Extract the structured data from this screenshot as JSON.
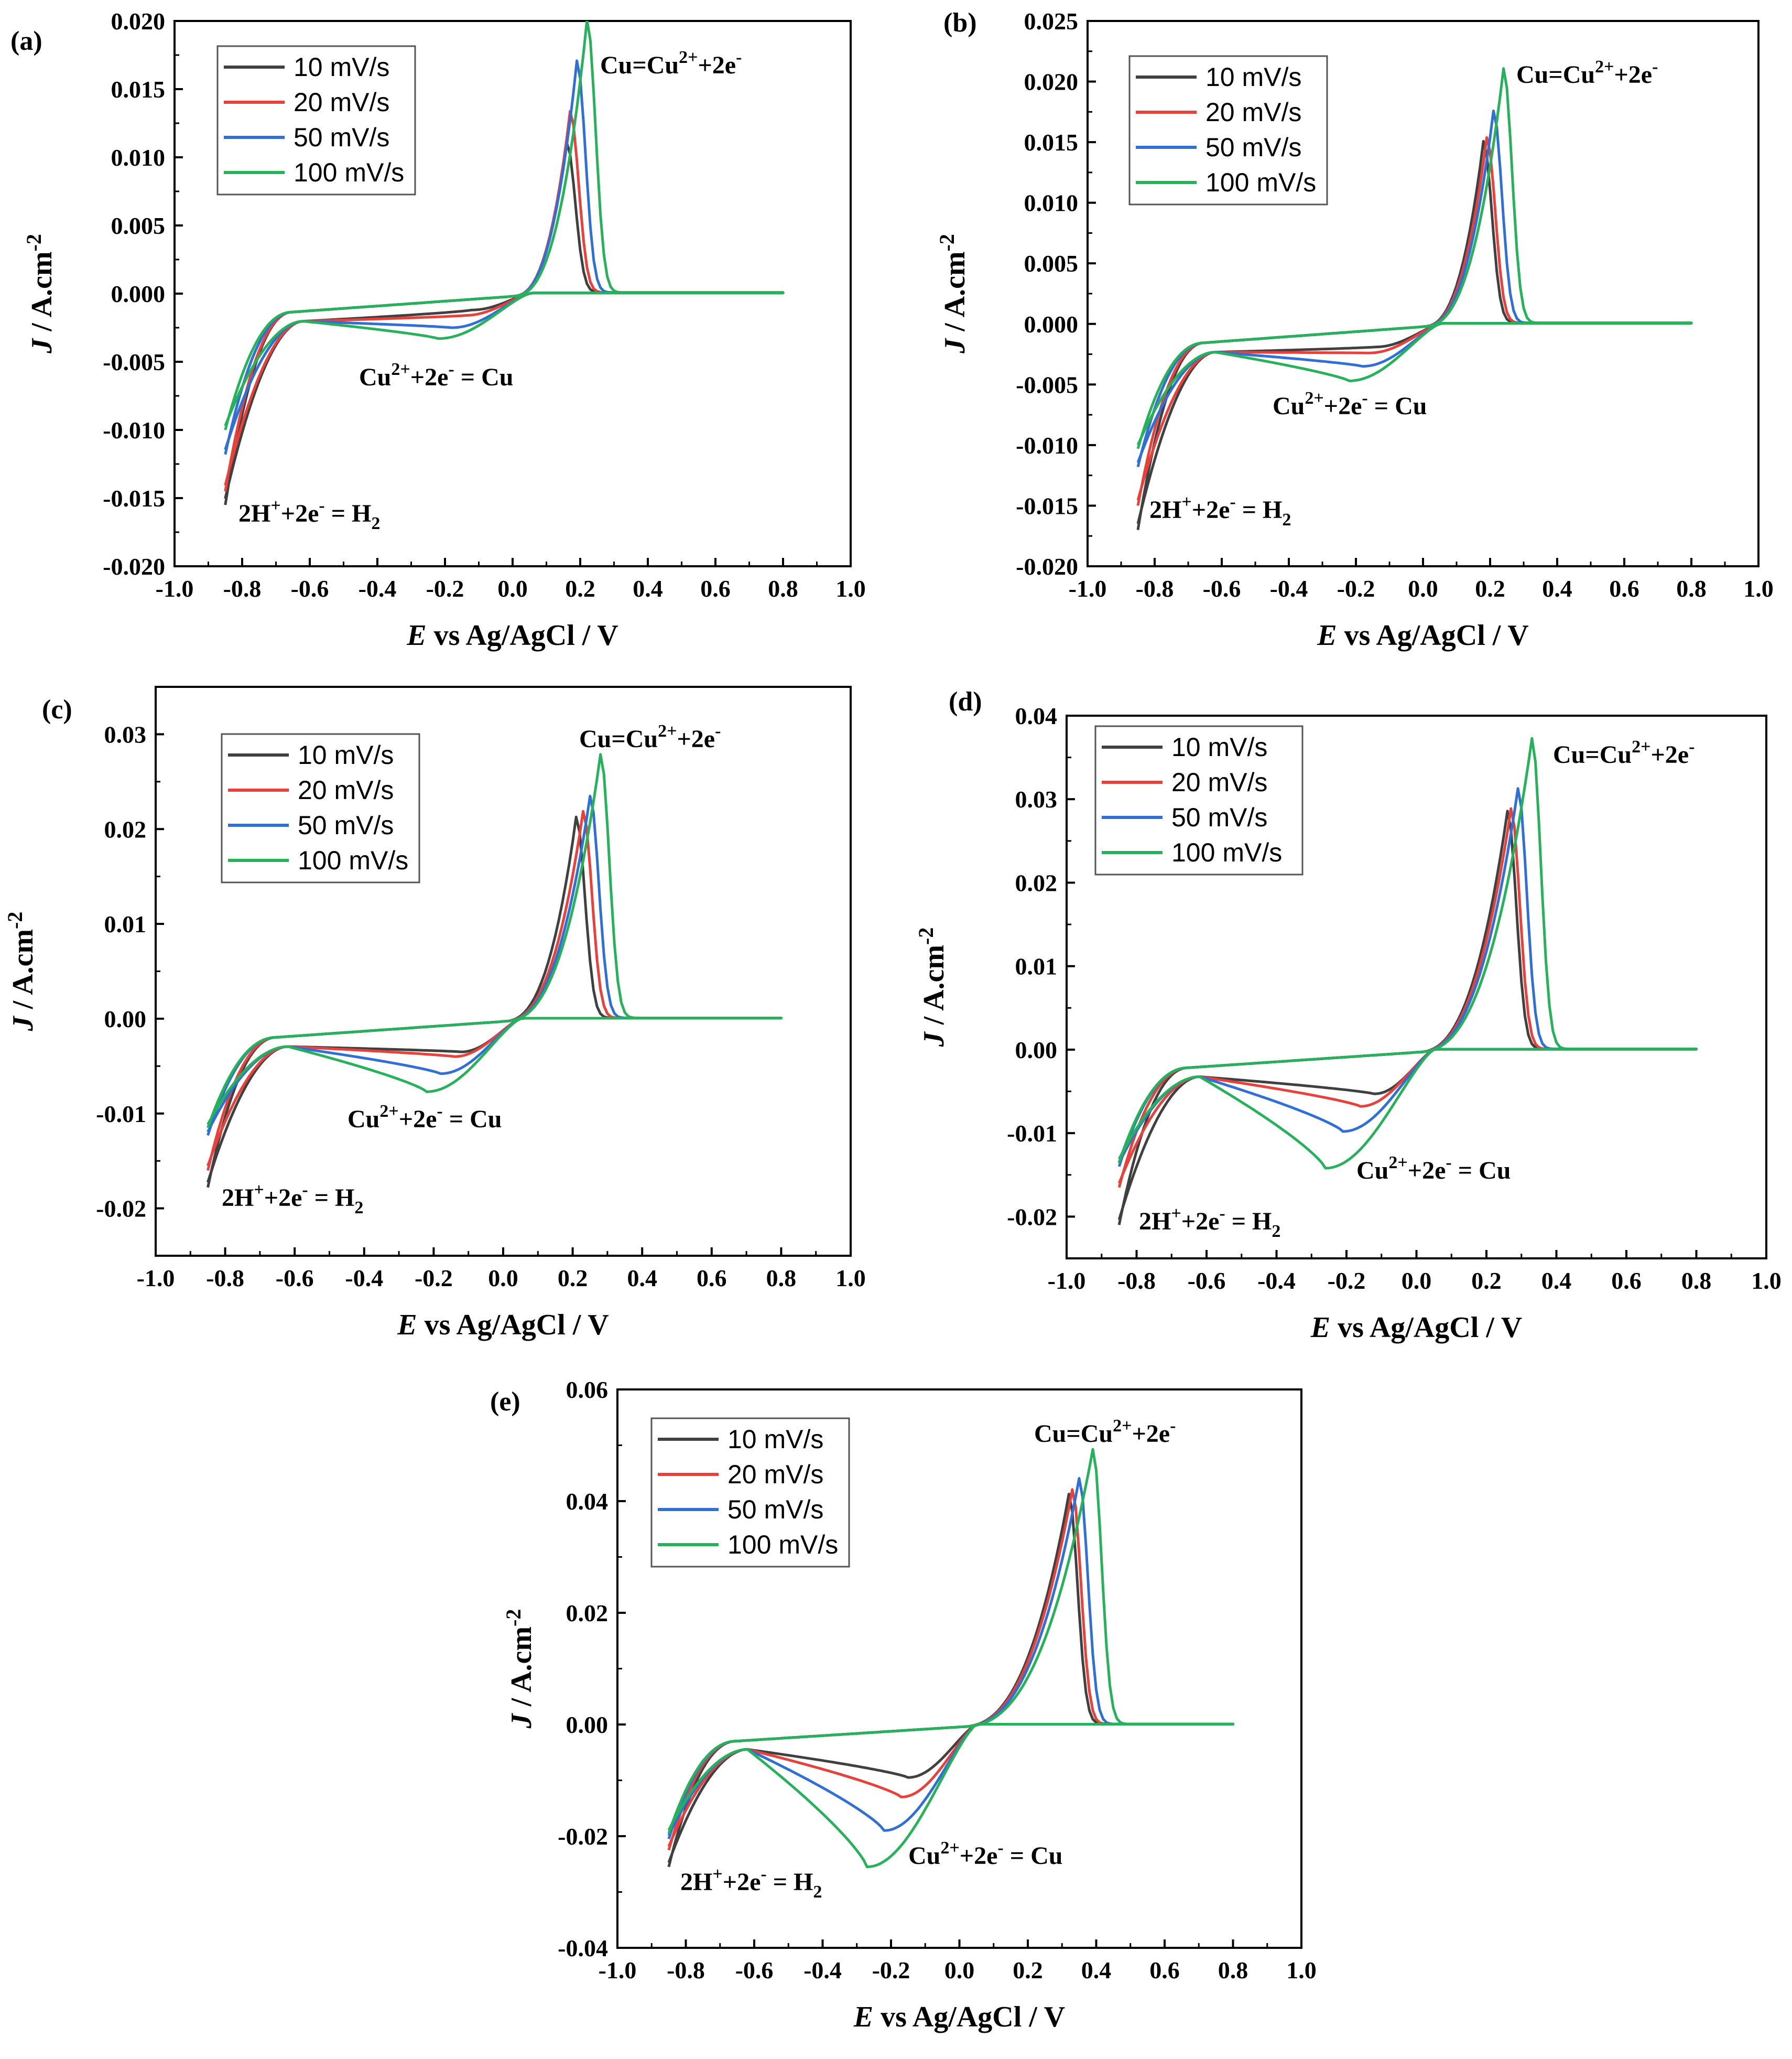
{
  "figure": {
    "xlabel_italic": "E",
    "xlabel_rest": " vs Ag/AgCl / V",
    "ylabel_italic": "J",
    "ylabel_rest": " / A.cm",
    "ylabel_sup": "-2",
    "legend": [
      "10 mV/s",
      "20 mV/s",
      "50 mV/s",
      "100 mV/s"
    ],
    "colors": [
      "#404040",
      "#e8403a",
      "#2f6fd6",
      "#27b15a"
    ],
    "annotations": {
      "oxidation": {
        "a": "Cu=Cu",
        "b": "2+",
        "c": "+2e",
        "d": "-"
      },
      "reduction": {
        "a": "Cu",
        "b": "2+",
        "c": "+2e",
        "d": "-",
        "e": " = Cu"
      },
      "hydrogen": {
        "a": "2H",
        "b": "+",
        "c": "+2e",
        "d": "-",
        "e": " = H",
        "f": "2"
      }
    }
  },
  "chart_data": [
    {
      "panel": "(a)",
      "type": "line",
      "xlim": [
        -1.0,
        1.0
      ],
      "ylim": [
        -0.02,
        0.02
      ],
      "xticks": [
        "-1.0",
        "-0.8",
        "-0.6",
        "-0.4",
        "-0.2",
        "0.0",
        "0.2",
        "0.4",
        "0.6",
        "0.8",
        "1.0"
      ],
      "yticks": [
        "-0.020",
        "-0.015",
        "-0.010",
        "-0.005",
        "0.000",
        "0.005",
        "0.010",
        "0.015",
        "0.020"
      ],
      "xtick_values": [
        -1.0,
        -0.8,
        -0.6,
        -0.4,
        -0.2,
        0.0,
        0.2,
        0.4,
        0.6,
        0.8,
        1.0
      ],
      "ytick_values": [
        -0.02,
        -0.015,
        -0.01,
        -0.005,
        0.0,
        0.005,
        0.01,
        0.015,
        0.02
      ],
      "series": [
        {
          "name": "10 mV/s",
          "peak_anodic": {
            "x": 0.16,
            "y": 0.011
          },
          "peak_cathodic": {
            "x": -0.12,
            "y": -0.0012
          },
          "min_current": -0.0155
        },
        {
          "name": "20 mV/s",
          "peak_anodic": {
            "x": 0.17,
            "y": 0.0133
          },
          "peak_cathodic": {
            "x": -0.14,
            "y": -0.0016
          },
          "min_current": -0.0145
        },
        {
          "name": "50 mV/s",
          "peak_anodic": {
            "x": 0.19,
            "y": 0.017
          },
          "peak_cathodic": {
            "x": -0.18,
            "y": -0.0025
          },
          "min_current": -0.0118
        },
        {
          "name": "100 mV/s",
          "peak_anodic": {
            "x": 0.22,
            "y": 0.02
          },
          "peak_cathodic": {
            "x": -0.22,
            "y": -0.0033
          },
          "min_current": -0.01
        }
      ]
    },
    {
      "panel": "(b)",
      "type": "line",
      "xlim": [
        -1.0,
        1.0
      ],
      "ylim": [
        -0.02,
        0.025
      ],
      "xticks": [
        "-1.0",
        "-0.8",
        "-0.6",
        "-0.4",
        "-0.2",
        "0.0",
        "0.2",
        "0.4",
        "0.6",
        "0.8",
        "1.0"
      ],
      "yticks": [
        "-0.020",
        "-0.015",
        "-0.010",
        "-0.005",
        "0.000",
        "0.005",
        "0.010",
        "0.015",
        "0.020",
        "0.025"
      ],
      "xtick_values": [
        -1.0,
        -0.8,
        -0.6,
        -0.4,
        -0.2,
        0.0,
        0.2,
        0.4,
        0.6,
        0.8,
        1.0
      ],
      "ytick_values": [
        -0.02,
        -0.015,
        -0.01,
        -0.005,
        0.0,
        0.005,
        0.01,
        0.015,
        0.02,
        0.025
      ],
      "series": [
        {
          "name": "10 mV/s",
          "peak_anodic": {
            "x": 0.18,
            "y": 0.015
          },
          "peak_cathodic": {
            "x": -0.14,
            "y": -0.0019
          },
          "min_current": -0.017
        },
        {
          "name": "20 mV/s",
          "peak_anodic": {
            "x": 0.19,
            "y": 0.0153
          },
          "peak_cathodic": {
            "x": -0.16,
            "y": -0.0024
          },
          "min_current": -0.015
        },
        {
          "name": "50 mV/s",
          "peak_anodic": {
            "x": 0.21,
            "y": 0.0175
          },
          "peak_cathodic": {
            "x": -0.18,
            "y": -0.0035
          },
          "min_current": -0.0118
        },
        {
          "name": "100 mV/s",
          "peak_anodic": {
            "x": 0.24,
            "y": 0.021
          },
          "peak_cathodic": {
            "x": -0.22,
            "y": -0.0047
          },
          "min_current": -0.0103
        }
      ]
    },
    {
      "panel": "(c)",
      "type": "line",
      "xlim": [
        -1.0,
        1.0
      ],
      "ylim": [
        -0.025,
        0.035
      ],
      "xticks": [
        "-1.0",
        "-0.8",
        "-0.6",
        "-0.4",
        "-0.2",
        "0.0",
        "0.2",
        "0.4",
        "0.6",
        "0.8",
        "1.0"
      ],
      "yticks": [
        "-0.02",
        "-0.01",
        "0.00",
        "0.01",
        "0.02",
        "0.03"
      ],
      "xtick_values": [
        -1.0,
        -0.8,
        -0.6,
        -0.4,
        -0.2,
        0.0,
        0.2,
        0.4,
        0.6,
        0.8,
        1.0
      ],
      "ytick_values": [
        -0.02,
        -0.01,
        0.0,
        0.01,
        0.02,
        0.03
      ],
      "series": [
        {
          "name": "10 mV/s",
          "peak_anodic": {
            "x": 0.21,
            "y": 0.0212
          },
          "peak_cathodic": {
            "x": -0.12,
            "y": -0.0035
          },
          "min_current": -0.0178
        },
        {
          "name": "20 mV/s",
          "peak_anodic": {
            "x": 0.23,
            "y": 0.0218
          },
          "peak_cathodic": {
            "x": -0.14,
            "y": -0.004
          },
          "min_current": -0.016
        },
        {
          "name": "50 mV/s",
          "peak_anodic": {
            "x": 0.25,
            "y": 0.0234
          },
          "peak_cathodic": {
            "x": -0.18,
            "y": -0.0058
          },
          "min_current": -0.0123
        },
        {
          "name": "100 mV/s",
          "peak_anodic": {
            "x": 0.28,
            "y": 0.0278
          },
          "peak_cathodic": {
            "x": -0.22,
            "y": -0.0077
          },
          "min_current": -0.0115
        }
      ]
    },
    {
      "panel": "(d)",
      "type": "line",
      "xlim": [
        -1.0,
        1.0
      ],
      "ylim": [
        -0.025,
        0.04
      ],
      "xticks": [
        "-1.0",
        "-0.8",
        "-0.6",
        "-0.4",
        "-0.2",
        "0.0",
        "0.2",
        "0.4",
        "0.6",
        "0.8",
        "1.0"
      ],
      "yticks": [
        "-0.02",
        "-0.01",
        "0.00",
        "0.01",
        "0.02",
        "0.03",
        "0.04"
      ],
      "xtick_values": [
        -1.0,
        -0.8,
        -0.6,
        -0.4,
        -0.2,
        0.0,
        0.2,
        0.4,
        0.6,
        0.8,
        1.0
      ],
      "ytick_values": [
        -0.02,
        -0.01,
        0.0,
        0.01,
        0.02,
        0.03,
        0.04
      ],
      "series": [
        {
          "name": "10 mV/s",
          "peak_anodic": {
            "x": 0.26,
            "y": 0.0285
          },
          "peak_cathodic": {
            "x": -0.12,
            "y": -0.0053
          },
          "min_current": -0.021
        },
        {
          "name": "20 mV/s",
          "peak_anodic": {
            "x": 0.27,
            "y": 0.0288
          },
          "peak_cathodic": {
            "x": -0.16,
            "y": -0.0068
          },
          "min_current": -0.0165
        },
        {
          "name": "50 mV/s",
          "peak_anodic": {
            "x": 0.29,
            "y": 0.0312
          },
          "peak_cathodic": {
            "x": -0.21,
            "y": -0.0098
          },
          "min_current": -0.014
        },
        {
          "name": "100 mV/s",
          "peak_anodic": {
            "x": 0.33,
            "y": 0.0372
          },
          "peak_cathodic": {
            "x": -0.26,
            "y": -0.0142
          },
          "min_current": -0.0135
        }
      ]
    },
    {
      "panel": "(e)",
      "type": "line",
      "xlim": [
        -1.0,
        1.0
      ],
      "ylim": [
        -0.04,
        0.06
      ],
      "xticks": [
        "-1.0",
        "-0.8",
        "-0.6",
        "-0.4",
        "-0.2",
        "0.0",
        "0.2",
        "0.4",
        "0.6",
        "0.8",
        "1.0"
      ],
      "yticks": [
        "-0.04",
        "-0.02",
        "0.00",
        "0.02",
        "0.04",
        "0.06"
      ],
      "xtick_values": [
        -1.0,
        -0.8,
        -0.6,
        -0.4,
        -0.2,
        0.0,
        0.2,
        0.4,
        0.6,
        0.8,
        1.0
      ],
      "ytick_values": [
        -0.04,
        -0.02,
        0.0,
        0.02,
        0.04,
        0.06
      ],
      "series": [
        {
          "name": "10 mV/s",
          "peak_anodic": {
            "x": 0.32,
            "y": 0.0412
          },
          "peak_cathodic": {
            "x": -0.15,
            "y": -0.0095
          },
          "min_current": -0.0255
        },
        {
          "name": "20 mV/s",
          "peak_anodic": {
            "x": 0.33,
            "y": 0.042
          },
          "peak_cathodic": {
            "x": -0.17,
            "y": -0.013
          },
          "min_current": -0.0225
        },
        {
          "name": "50 mV/s",
          "peak_anodic": {
            "x": 0.35,
            "y": 0.044
          },
          "peak_cathodic": {
            "x": -0.22,
            "y": -0.019
          },
          "min_current": -0.0205
        },
        {
          "name": "100 mV/s",
          "peak_anodic": {
            "x": 0.39,
            "y": 0.0492
          },
          "peak_cathodic": {
            "x": -0.27,
            "y": -0.0255
          },
          "min_current": -0.0195
        }
      ]
    }
  ]
}
